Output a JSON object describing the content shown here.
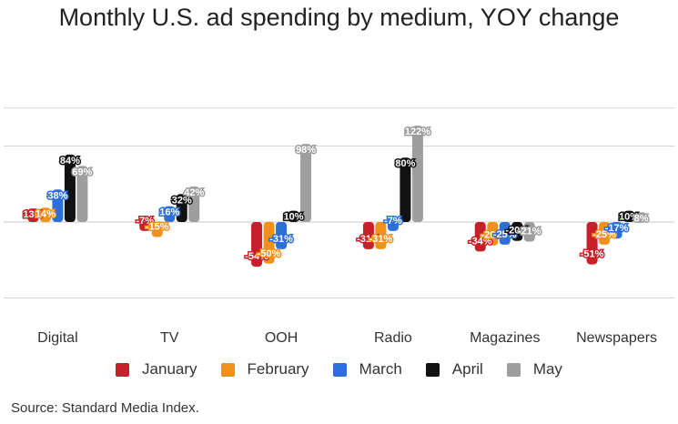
{
  "chart_data": {
    "type": "bar",
    "title": "Monthly U.S. ad spending by medium, YOY change",
    "xlabel": "",
    "ylabel": "",
    "ylim": [
      -100,
      150
    ],
    "gridlines": [
      -100,
      0,
      100,
      150
    ],
    "categories": [
      "Digital",
      "TV",
      "OOH",
      "Radio",
      "Magazines",
      "Newspapers"
    ],
    "series": [
      {
        "name": "January",
        "color": "#c8202a",
        "values": [
          13,
          -7,
          -54,
          -31,
          -34,
          -51
        ],
        "labels": [
          "13%",
          "-7%",
          "-54%",
          "-31%",
          "-34%",
          "-51%"
        ]
      },
      {
        "name": "February",
        "color": "#f0911b",
        "values": [
          14,
          -15,
          -50,
          -31,
          -26,
          -25
        ],
        "labels": [
          "14%",
          "-15%",
          "-50%",
          "-31%",
          "-26%",
          "-25%"
        ]
      },
      {
        "name": "March",
        "color": "#2c6fdb",
        "values": [
          38,
          16,
          -31,
          -7,
          -25,
          -17
        ],
        "labels": [
          "38%",
          "16%",
          "-31%",
          "-7%",
          "-25%",
          "-17%"
        ]
      },
      {
        "name": "April",
        "color": "#111111",
        "values": [
          84,
          32,
          10,
          80,
          -20,
          10
        ],
        "labels": [
          "84%",
          "32%",
          "10%",
          "80%",
          "-20%",
          "10%"
        ]
      },
      {
        "name": "May",
        "color": "#9e9e9e",
        "values": [
          69,
          42,
          98,
          122,
          -21,
          8
        ],
        "labels": [
          "69%",
          "42%",
          "98%",
          "122%",
          "-21%",
          "8%"
        ]
      }
    ],
    "legend_position": "bottom"
  },
  "source": "Source: Standard Media Index."
}
